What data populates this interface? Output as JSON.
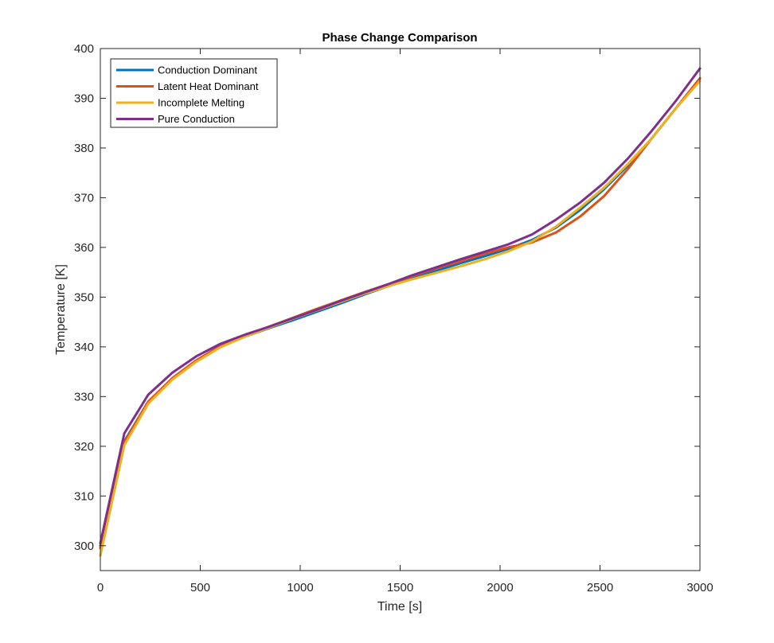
{
  "chart_data": {
    "type": "line",
    "title": "Phase Change Comparison",
    "xlabel": "Time [s]",
    "ylabel": "Temperature [K]",
    "xlim": [
      0,
      3000
    ],
    "ylim": [
      295,
      400
    ],
    "xticks": [
      0,
      500,
      1000,
      1500,
      2000,
      2500,
      3000
    ],
    "yticks": [
      300,
      310,
      320,
      330,
      340,
      350,
      360,
      370,
      380,
      390,
      400
    ],
    "grid": false,
    "legend_position": "top-left",
    "series": [
      {
        "name": "Conduction Dominant",
        "color": "#0072BD",
        "x": [
          0,
          120,
          240,
          360,
          480,
          600,
          720,
          840,
          960,
          1080,
          1200,
          1320,
          1440,
          1560,
          1680,
          1800,
          1920,
          2040,
          2160,
          2280,
          2400,
          2520,
          2640,
          2760,
          2880,
          3000
        ],
        "y": [
          300,
          321,
          329,
          333.5,
          337.2,
          340,
          342,
          343.7,
          345.3,
          347,
          348.7,
          350.5,
          352.2,
          353.8,
          355.3,
          356.8,
          358.2,
          359.7,
          361.5,
          364,
          367.5,
          371.7,
          376.5,
          382,
          388,
          394
        ]
      },
      {
        "name": "Latent Heat Dominant",
        "color": "#D95319",
        "x": [
          0,
          120,
          240,
          360,
          480,
          600,
          720,
          840,
          960,
          1080,
          1200,
          1320,
          1440,
          1560,
          1680,
          1800,
          1920,
          2040,
          2160,
          2280,
          2400,
          2520,
          2640,
          2760,
          2880,
          3000
        ],
        "y": [
          299.5,
          320.8,
          329,
          333.7,
          337.3,
          340.2,
          342.2,
          344,
          345.8,
          347.6,
          349.3,
          351,
          352.6,
          354.2,
          355.8,
          357.2,
          358.7,
          360,
          361,
          363,
          366.2,
          370.3,
          375.8,
          382,
          388,
          394
        ]
      },
      {
        "name": "Incomplete Melting",
        "color": "#EDB120",
        "x": [
          0,
          120,
          240,
          360,
          480,
          600,
          720,
          840,
          960,
          1080,
          1200,
          1320,
          1440,
          1560,
          1680,
          1800,
          1920,
          2040,
          2160,
          2280,
          2400,
          2520,
          2640,
          2760,
          2880,
          3000
        ],
        "y": [
          298,
          320.2,
          328.6,
          333.4,
          337,
          339.9,
          342,
          343.8,
          345.6,
          347.3,
          349,
          350.7,
          352.2,
          353.6,
          354.9,
          356.2,
          357.6,
          359.2,
          361.2,
          364.2,
          368,
          372,
          376.8,
          382,
          388,
          393.5
        ]
      },
      {
        "name": "Pure Conduction",
        "color": "#7E2F8E",
        "x": [
          0,
          120,
          240,
          360,
          480,
          600,
          720,
          840,
          960,
          1080,
          1200,
          1320,
          1440,
          1560,
          1680,
          1800,
          1920,
          2040,
          2160,
          2280,
          2400,
          2520,
          2640,
          2760,
          2880,
          3000
        ],
        "y": [
          300.5,
          322.6,
          330.4,
          334.8,
          338.1,
          340.6,
          342.4,
          344,
          345.7,
          347.4,
          349.2,
          350.9,
          352.6,
          354.4,
          356,
          357.6,
          359.1,
          360.6,
          362.6,
          365.6,
          369,
          373,
          377.9,
          383.5,
          389.5,
          396
        ]
      }
    ]
  }
}
